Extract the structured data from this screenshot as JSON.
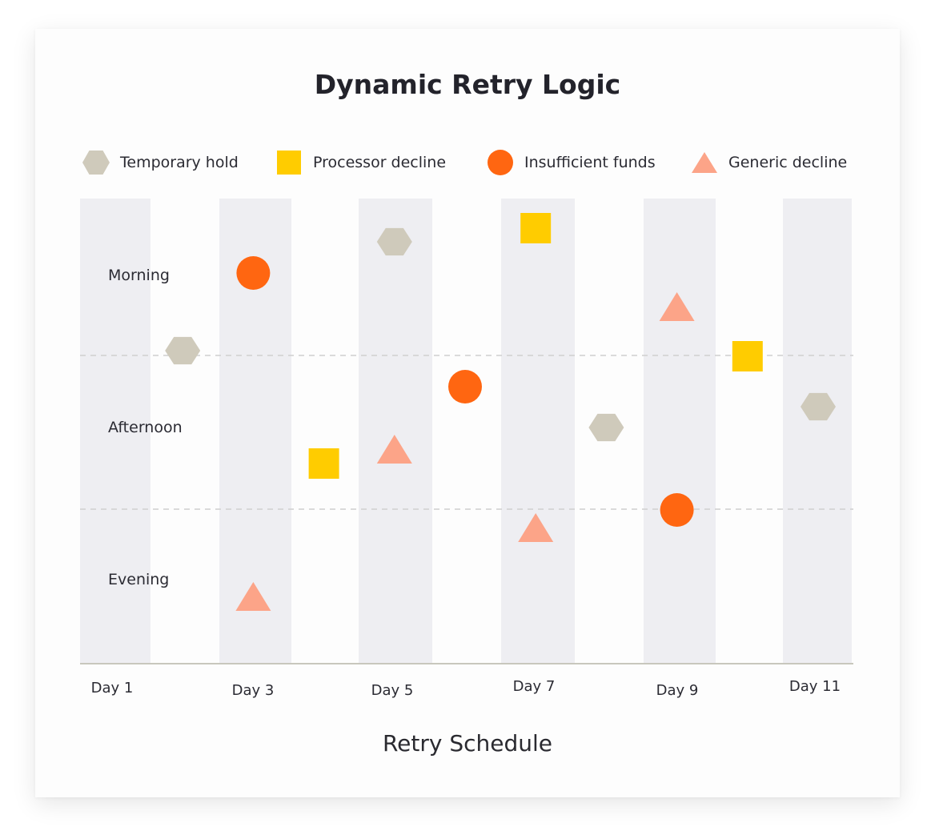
{
  "chart_data": {
    "type": "scatter",
    "title": "Dynamic Retry Logic",
    "xlabel": "Retry Schedule",
    "ylabel": "",
    "x_ticks": [
      "Day 1",
      "Day 3",
      "Day 5",
      "Day 7",
      "Day 9",
      "Day 11"
    ],
    "y_categories": [
      "Morning",
      "Afternoon",
      "Evening"
    ],
    "xlim": [
      1,
      11
    ],
    "grid": "dashed horizontal lines between Morning/Afternoon and Afternoon/Evening",
    "legend_position": "top",
    "series": [
      {
        "name": "Temporary hold",
        "marker": "hexagon",
        "color": "#cfcabb",
        "points": [
          {
            "day": 2,
            "time": "Afternoon"
          },
          {
            "day": 5,
            "time": "Morning"
          },
          {
            "day": 8,
            "time": "Afternoon"
          },
          {
            "day": 11,
            "time": "Afternoon"
          }
        ]
      },
      {
        "name": "Processor decline",
        "marker": "square",
        "color": "#ffcc00",
        "points": [
          {
            "day": 4,
            "time": "Afternoon"
          },
          {
            "day": 7,
            "time": "Morning"
          },
          {
            "day": 10,
            "time": "Afternoon"
          }
        ]
      },
      {
        "name": "Insufficient funds",
        "marker": "circle",
        "color": "#ff6611",
        "points": [
          {
            "day": 3,
            "time": "Morning"
          },
          {
            "day": 6,
            "time": "Afternoon"
          },
          {
            "day": 9,
            "time": "Evening"
          }
        ]
      },
      {
        "name": "Generic decline",
        "marker": "triangle",
        "color": "#fca488",
        "points": [
          {
            "day": 3,
            "time": "Evening"
          },
          {
            "day": 5,
            "time": "Afternoon"
          },
          {
            "day": 7,
            "time": "Evening"
          },
          {
            "day": 9,
            "time": "Morning"
          }
        ]
      }
    ]
  },
  "colors": {
    "band": "#eeeef2",
    "axis": "#c8c7bd",
    "grid": "#cfcfcf"
  }
}
